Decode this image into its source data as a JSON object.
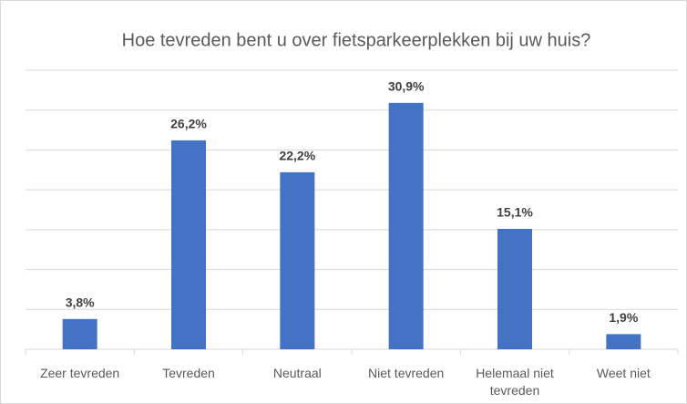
{
  "chart_data": {
    "type": "bar",
    "title": "Hoe tevreden bent u over fietsparkeerplekken bij uw huis?",
    "categories": [
      "Zeer tevreden",
      "Tevreden",
      "Neutraal",
      "Niet tevreden",
      "Helemaal niet tevreden",
      "Weet niet"
    ],
    "values": [
      3.8,
      26.2,
      22.2,
      30.9,
      15.1,
      1.9
    ],
    "value_labels": [
      "3,8%",
      "26,2%",
      "22,2%",
      "30,9%",
      "15,1%",
      "1,9%"
    ],
    "color": "#4472c4",
    "ylim": [
      0,
      35
    ],
    "yticks": [
      0,
      5,
      10,
      15,
      20,
      25,
      30,
      35
    ],
    "grid": true
  }
}
